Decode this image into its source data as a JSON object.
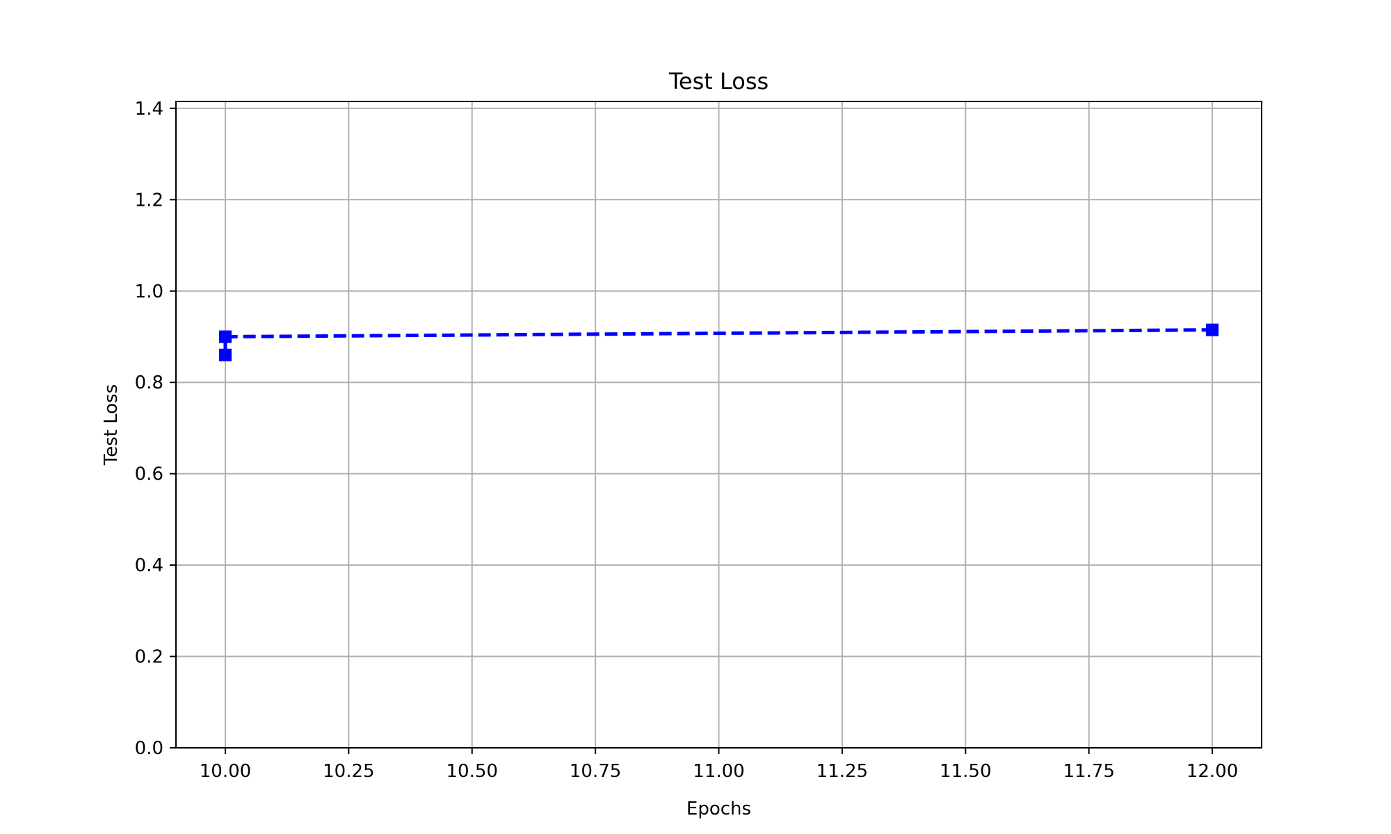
{
  "chart_data": {
    "type": "line",
    "title": "Test Loss",
    "xlabel": "Epochs",
    "ylabel": "Test Loss",
    "xlim": [
      9.9,
      12.1
    ],
    "ylim": [
      0,
      1.4
    ],
    "x_ticks": [
      "10.00",
      "10.25",
      "10.50",
      "10.75",
      "11.00",
      "11.25",
      "11.50",
      "11.75",
      "12.00"
    ],
    "x_tick_values": [
      10.0,
      10.25,
      10.5,
      10.75,
      11.0,
      11.25,
      11.5,
      11.75,
      12.0
    ],
    "y_ticks": [
      "0.0",
      "0.2",
      "0.4",
      "0.6",
      "0.8",
      "1.0",
      "1.2",
      "1.4"
    ],
    "y_tick_values": [
      0.0,
      0.2,
      0.4,
      0.6,
      0.8,
      1.0,
      1.2,
      1.4
    ],
    "grid": true,
    "series": [
      {
        "x": [
          10,
          10,
          12
        ],
        "y": [
          0.86,
          0.9,
          0.915
        ],
        "color": "#0000ff",
        "linestyle": "dashed",
        "marker": "square"
      }
    ]
  }
}
